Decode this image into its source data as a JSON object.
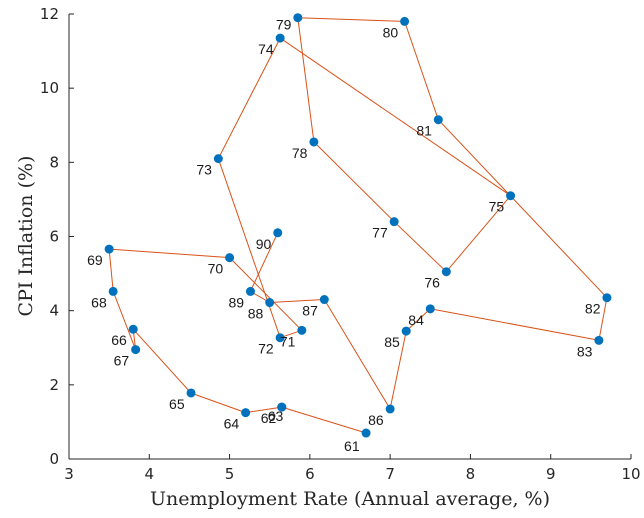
{
  "chart_data": {
    "type": "scatter",
    "title": "",
    "xlabel": "Unemployment Rate (Annual average, %)",
    "ylabel": "CPI Inflation (%)",
    "xlim": [
      3,
      10
    ],
    "ylim": [
      0,
      12
    ],
    "x_ticks": [
      "3",
      "4",
      "5",
      "6",
      "7",
      "8",
      "9",
      "10"
    ],
    "y_ticks": [
      "0",
      "2",
      "4",
      "6",
      "8",
      "10",
      "12"
    ],
    "grid": false,
    "line_color": "#d95319",
    "marker_color": "#0072bd",
    "points": [
      {
        "label": "61",
        "x": 6.7,
        "y": 0.7
      },
      {
        "label": "62",
        "x": 5.65,
        "y": 1.4
      },
      {
        "label": "63",
        "x": 5.65,
        "y": 1.4
      },
      {
        "label": "64",
        "x": 5.2,
        "y": 1.25
      },
      {
        "label": "65",
        "x": 4.52,
        "y": 1.78
      },
      {
        "label": "66",
        "x": 3.8,
        "y": 3.5
      },
      {
        "label": "67",
        "x": 3.83,
        "y": 2.95
      },
      {
        "label": "68",
        "x": 3.55,
        "y": 4.52
      },
      {
        "label": "69",
        "x": 3.5,
        "y": 5.66
      },
      {
        "label": "70",
        "x": 5.0,
        "y": 5.43
      },
      {
        "label": "71",
        "x": 5.9,
        "y": 3.47
      },
      {
        "label": "72",
        "x": 5.63,
        "y": 3.27
      },
      {
        "label": "73",
        "x": 4.86,
        "y": 8.1
      },
      {
        "label": "74",
        "x": 5.63,
        "y": 11.35
      },
      {
        "label": "75",
        "x": 8.5,
        "y": 7.1
      },
      {
        "label": "76",
        "x": 7.7,
        "y": 5.05
      },
      {
        "label": "77",
        "x": 7.05,
        "y": 6.4
      },
      {
        "label": "78",
        "x": 6.05,
        "y": 8.55
      },
      {
        "label": "79",
        "x": 5.85,
        "y": 11.9
      },
      {
        "label": "80",
        "x": 7.18,
        "y": 11.8
      },
      {
        "label": "81",
        "x": 7.6,
        "y": 9.15
      },
      {
        "label": "82",
        "x": 9.7,
        "y": 4.35
      },
      {
        "label": "83",
        "x": 9.6,
        "y": 3.2
      },
      {
        "label": "84",
        "x": 7.5,
        "y": 4.05
      },
      {
        "label": "85",
        "x": 7.2,
        "y": 3.45
      },
      {
        "label": "86",
        "x": 7.0,
        "y": 1.35
      },
      {
        "label": "87",
        "x": 6.18,
        "y": 4.3
      },
      {
        "label": "88",
        "x": 5.5,
        "y": 4.22
      },
      {
        "label": "89",
        "x": 5.26,
        "y": 4.52
      },
      {
        "label": "90",
        "x": 5.6,
        "y": 6.1
      }
    ]
  }
}
